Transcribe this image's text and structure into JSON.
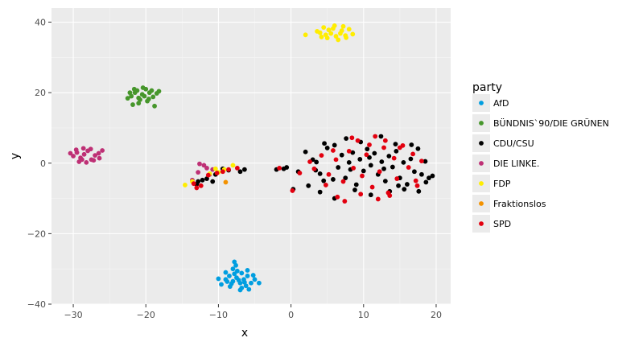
{
  "chart_data": {
    "type": "scatter",
    "xlabel": "x",
    "ylabel": "y",
    "xlim": [
      -33,
      22
    ],
    "ylim": [
      -40,
      44
    ],
    "x_ticks": [
      -30,
      -20,
      -10,
      0,
      10,
      20
    ],
    "y_ticks": [
      -40,
      -20,
      0,
      20,
      40
    ],
    "x_tick_labels": [
      "−30",
      "−20",
      "−10",
      "0",
      "10",
      "20"
    ],
    "y_tick_labels": [
      "−40",
      "−20",
      "0",
      "20",
      "40"
    ],
    "grid": true,
    "legend_title": "party",
    "legend_position": "right",
    "series": [
      {
        "name": "AfD",
        "color": "#009ee0",
        "points": [
          [
            -9,
            -33
          ],
          [
            -8.5,
            -32
          ],
          [
            -8,
            -33.5
          ],
          [
            -7.5,
            -32.5
          ],
          [
            -7,
            -34
          ],
          [
            -6.5,
            -33
          ],
          [
            -6,
            -32
          ],
          [
            -5.5,
            -34
          ],
          [
            -5,
            -33
          ],
          [
            -8,
            -30
          ],
          [
            -7.6,
            -29
          ],
          [
            -7.8,
            -28
          ],
          [
            -6.8,
            -31.2
          ],
          [
            -9.6,
            -34.4
          ],
          [
            -10,
            -32.8
          ],
          [
            -8.4,
            -35
          ],
          [
            -6.8,
            -35.4
          ],
          [
            -5.8,
            -35.8
          ],
          [
            -7,
            -36
          ],
          [
            -4.4,
            -34
          ],
          [
            -6,
            -30.4
          ],
          [
            -9,
            -31
          ],
          [
            -7.2,
            -33.2
          ],
          [
            -8.2,
            -34.2
          ],
          [
            -5.2,
            -31.8
          ],
          [
            -6.4,
            -33.8
          ],
          [
            -7.8,
            -31.4
          ],
          [
            -8.8,
            -33.6
          ],
          [
            -6.2,
            -34.8
          ],
          [
            -7.4,
            -30.6
          ]
        ]
      },
      {
        "name": "BÜNDNIS`90/DIE GRÜNEN",
        "color": "#46962b",
        "points": [
          [
            -22,
            19
          ],
          [
            -21.5,
            20
          ],
          [
            -21,
            18.5
          ],
          [
            -20.5,
            19.5
          ],
          [
            -20,
            21
          ],
          [
            -19.5,
            20
          ],
          [
            -19,
            18.8
          ],
          [
            -18.5,
            19.8
          ],
          [
            -21,
            17
          ],
          [
            -22.5,
            18.4
          ],
          [
            -20.4,
            21.4
          ],
          [
            -19.8,
            17.6
          ],
          [
            -21.8,
            16.6
          ],
          [
            -18.8,
            16.2
          ],
          [
            -21.6,
            21
          ],
          [
            -20.8,
            18
          ],
          [
            -19.2,
            20.6
          ],
          [
            -22.2,
            20
          ],
          [
            -18.2,
            20.4
          ],
          [
            -20.2,
            19
          ],
          [
            -21.2,
            20.6
          ],
          [
            -19.6,
            18.2
          ]
        ]
      },
      {
        "name": "CDU/CSU",
        "color": "#000000",
        "points": [
          [
            2,
            3.2
          ],
          [
            3,
            1
          ],
          [
            3.5,
            0.3
          ],
          [
            4,
            -3
          ],
          [
            4.5,
            -5
          ],
          [
            5,
            4.3
          ],
          [
            6,
            5.1
          ],
          [
            6.5,
            -1.2
          ],
          [
            7,
            2.3
          ],
          [
            7.5,
            -4.2
          ],
          [
            8,
            0.2
          ],
          [
            8.5,
            3
          ],
          [
            9,
            -6.1
          ],
          [
            9.5,
            1.1
          ],
          [
            10,
            -2.2
          ],
          [
            10.5,
            4
          ],
          [
            11,
            -0.6
          ],
          [
            11.5,
            2.8
          ],
          [
            12,
            -3.2
          ],
          [
            12.5,
            0.4
          ],
          [
            13,
            -5.1
          ],
          [
            13.5,
            2
          ],
          [
            14,
            -1.1
          ],
          [
            14.5,
            3.4
          ],
          [
            15,
            -4.2
          ],
          [
            15.5,
            0.2
          ],
          [
            16,
            -6
          ],
          [
            16.5,
            1.2
          ],
          [
            17,
            -2.4
          ],
          [
            17.5,
            4.1
          ],
          [
            18,
            -3.2
          ],
          [
            18.5,
            0.5
          ],
          [
            19,
            -4.2
          ],
          [
            19.5,
            -3.6
          ],
          [
            2.4,
            -6.4
          ],
          [
            1,
            -2.4
          ],
          [
            -0.6,
            -1.2
          ],
          [
            -1,
            -1.6
          ],
          [
            -2,
            -1.8
          ],
          [
            0.3,
            -7.4
          ],
          [
            4,
            -8.2
          ],
          [
            6,
            -10
          ],
          [
            8.8,
            -7.6
          ],
          [
            11,
            -9
          ],
          [
            13.6,
            -8
          ],
          [
            15.6,
            -7.4
          ],
          [
            17.6,
            -8
          ],
          [
            18.6,
            -5.4
          ],
          [
            4.6,
            5.6
          ],
          [
            7.6,
            7
          ],
          [
            9.6,
            6
          ],
          [
            12.4,
            7.6
          ],
          [
            14.4,
            5.4
          ],
          [
            16.6,
            5.2
          ],
          [
            3.4,
            -2
          ],
          [
            5.8,
            -4.6
          ],
          [
            8.2,
            -1.8
          ],
          [
            10.8,
            1.6
          ],
          [
            12.8,
            -1.6
          ],
          [
            14.8,
            -6.4
          ],
          [
            -9.4,
            -1.6
          ],
          [
            -8.6,
            -2
          ],
          [
            -7,
            -2.4
          ],
          [
            -6.4,
            -1.8
          ],
          [
            -10.4,
            -3.2
          ],
          [
            -11.6,
            -4.4
          ],
          [
            -12.8,
            -5.2
          ],
          [
            -13,
            -6
          ],
          [
            -10.8,
            -5.2
          ],
          [
            -12.2,
            -4.8
          ]
        ]
      },
      {
        "name": "DIE LINKE.",
        "color": "#be3075",
        "points": [
          [
            -30,
            2
          ],
          [
            -29.5,
            3
          ],
          [
            -29,
            1.5
          ],
          [
            -28.5,
            2.5
          ],
          [
            -28,
            3.5
          ],
          [
            -27.5,
            1
          ],
          [
            -27,
            2.2
          ],
          [
            -26.5,
            2.8
          ],
          [
            -29.2,
            0.4
          ],
          [
            -28.6,
            4.2
          ],
          [
            -27.6,
            4
          ],
          [
            -26,
            3.6
          ],
          [
            -26.4,
            1.4
          ],
          [
            -30.4,
            2.8
          ],
          [
            -28.2,
            0.2
          ],
          [
            -29.6,
            3.8
          ],
          [
            -27.2,
            0.8
          ],
          [
            -28.8,
            1
          ],
          [
            -12.6,
            -0.2
          ],
          [
            -12,
            -0.6
          ],
          [
            -11.6,
            -1.4
          ],
          [
            -10.8,
            -1.8
          ],
          [
            -11.2,
            -3.2
          ],
          [
            -12.8,
            -2.6
          ],
          [
            -13.6,
            -4.8
          ]
        ]
      },
      {
        "name": "FDP",
        "color": "#ffed00",
        "points": [
          [
            4,
            37
          ],
          [
            4.5,
            38.5
          ],
          [
            5,
            35.5
          ],
          [
            5.5,
            36.8
          ],
          [
            6,
            39
          ],
          [
            6.5,
            35
          ],
          [
            7,
            37.6
          ],
          [
            7.5,
            36.2
          ],
          [
            8,
            38
          ],
          [
            8.5,
            36.6
          ],
          [
            5.2,
            37.8
          ],
          [
            6.2,
            36
          ],
          [
            4.2,
            35.8
          ],
          [
            7.2,
            38.8
          ],
          [
            3.6,
            37.4
          ],
          [
            2,
            36.4
          ],
          [
            5.8,
            38.2
          ],
          [
            6.8,
            36.8
          ],
          [
            4.8,
            36.4
          ],
          [
            7.6,
            35.6
          ],
          [
            -14.6,
            -6.2
          ],
          [
            -13.6,
            -5.2
          ],
          [
            -11.2,
            -3
          ],
          [
            -10,
            -2.6
          ],
          [
            -9.2,
            -1.8
          ],
          [
            -8,
            -0.6
          ],
          [
            -10.4,
            -1.6
          ]
        ]
      },
      {
        "name": "Fraktionslos",
        "color": "#f39200",
        "points": [
          [
            -9,
            -5.4
          ]
        ]
      },
      {
        "name": "SPD",
        "color": "#e3000f",
        "points": [
          [
            2.6,
            0.4
          ],
          [
            3.2,
            -1.6
          ],
          [
            4.2,
            2.2
          ],
          [
            5.2,
            -3.2
          ],
          [
            6.2,
            1
          ],
          [
            7.2,
            -5.2
          ],
          [
            8,
            3.4
          ],
          [
            8.6,
            -1.4
          ],
          [
            9.2,
            6.4
          ],
          [
            9.8,
            -3.6
          ],
          [
            10.4,
            2.4
          ],
          [
            11.2,
            -6.8
          ],
          [
            11.6,
            7.6
          ],
          [
            12.2,
            -2.4
          ],
          [
            12.8,
            4.4
          ],
          [
            13.4,
            -8.4
          ],
          [
            14.2,
            1.4
          ],
          [
            14.6,
            -4.4
          ],
          [
            15.4,
            5
          ],
          [
            16.2,
            -1.2
          ],
          [
            16.8,
            2.6
          ],
          [
            17.4,
            -6.4
          ],
          [
            18,
            0.6
          ],
          [
            4.8,
            -6.2
          ],
          [
            6.4,
            -9.6
          ],
          [
            7.4,
            -10.8
          ],
          [
            9.6,
            -8.8
          ],
          [
            12,
            -10.2
          ],
          [
            13.6,
            -9.2
          ],
          [
            1.2,
            -2.8
          ],
          [
            0.2,
            -7.8
          ],
          [
            -1.6,
            -1.4
          ],
          [
            5.8,
            3.6
          ],
          [
            8.4,
            7.2
          ],
          [
            10.8,
            5.2
          ],
          [
            13,
            6.4
          ],
          [
            15,
            4.4
          ],
          [
            17.2,
            -5
          ],
          [
            -13,
            -7
          ],
          [
            -12.4,
            -6.4
          ],
          [
            -11.4,
            -3.4
          ],
          [
            -10.2,
            -2.8
          ],
          [
            -9.4,
            -2.4
          ],
          [
            -8.6,
            -1.8
          ],
          [
            -7.4,
            -1.4
          ],
          [
            -13.4,
            -5.8
          ]
        ]
      }
    ]
  }
}
